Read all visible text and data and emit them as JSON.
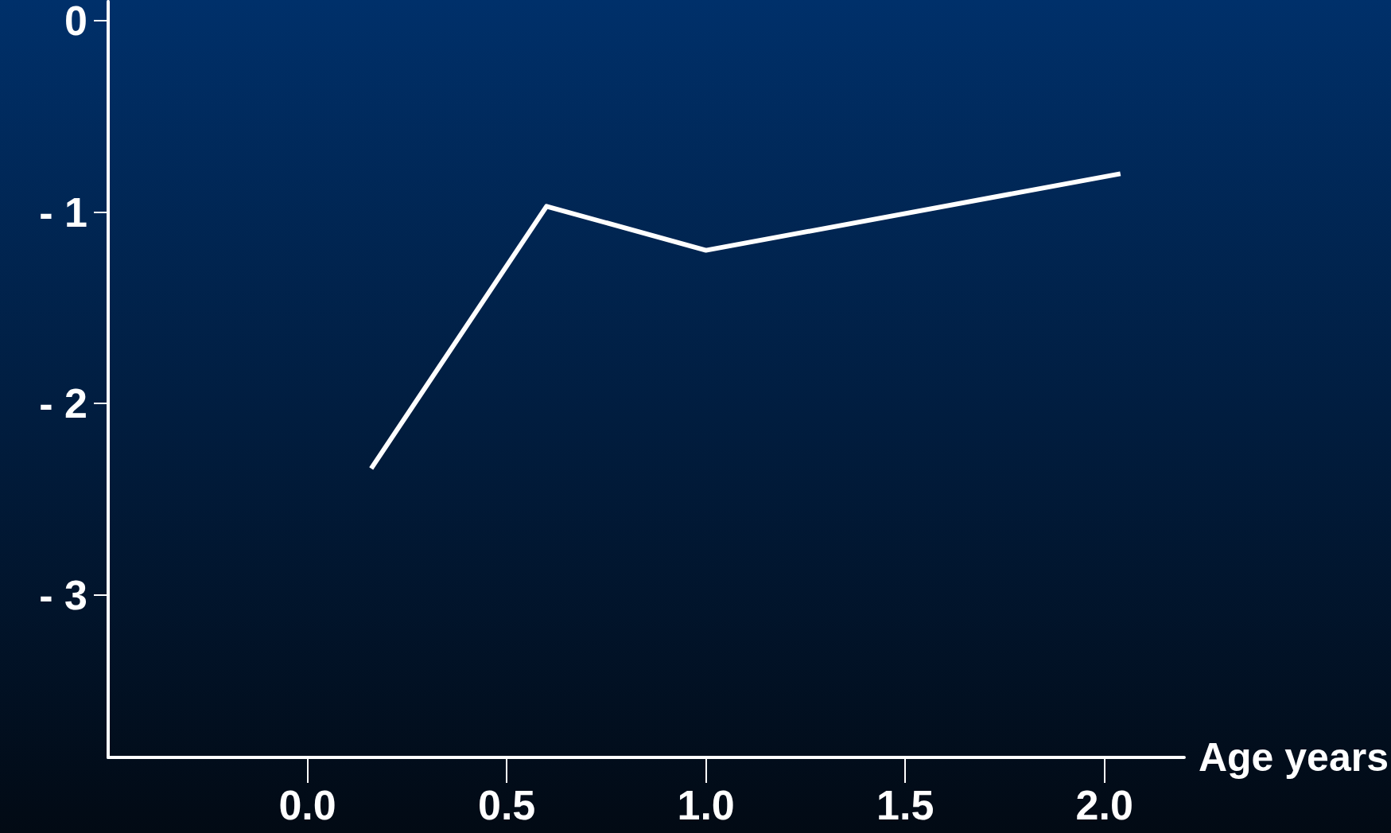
{
  "chart_data": {
    "type": "line",
    "xlabel": "Age years",
    "x": [
      0.16,
      0.6,
      1.0,
      2.04
    ],
    "series": [
      {
        "color": "#ffffff",
        "values": [
          -2.34,
          -0.97,
          -1.2,
          -0.8
        ]
      }
    ],
    "xlim": [
      -0.5,
      2.2
    ],
    "xticks": [
      {
        "value": 0,
        "label": "0.0"
      },
      {
        "value": 0.5,
        "label": "0.5"
      },
      {
        "value": 1,
        "label": "1.0"
      },
      {
        "value": 1.5,
        "label": "1.5"
      },
      {
        "value": 2,
        "label": "2.0"
      }
    ],
    "ylim": [
      -3.85,
      0.1
    ],
    "yticks": [
      0,
      {
        "value": -1,
        "label": "- 1"
      },
      {
        "value": -2,
        "label": "- 2"
      },
      {
        "value": -3,
        "label": "- 3"
      }
    ],
    "grid": false,
    "marker": "none",
    "line_style": "solid"
  }
}
